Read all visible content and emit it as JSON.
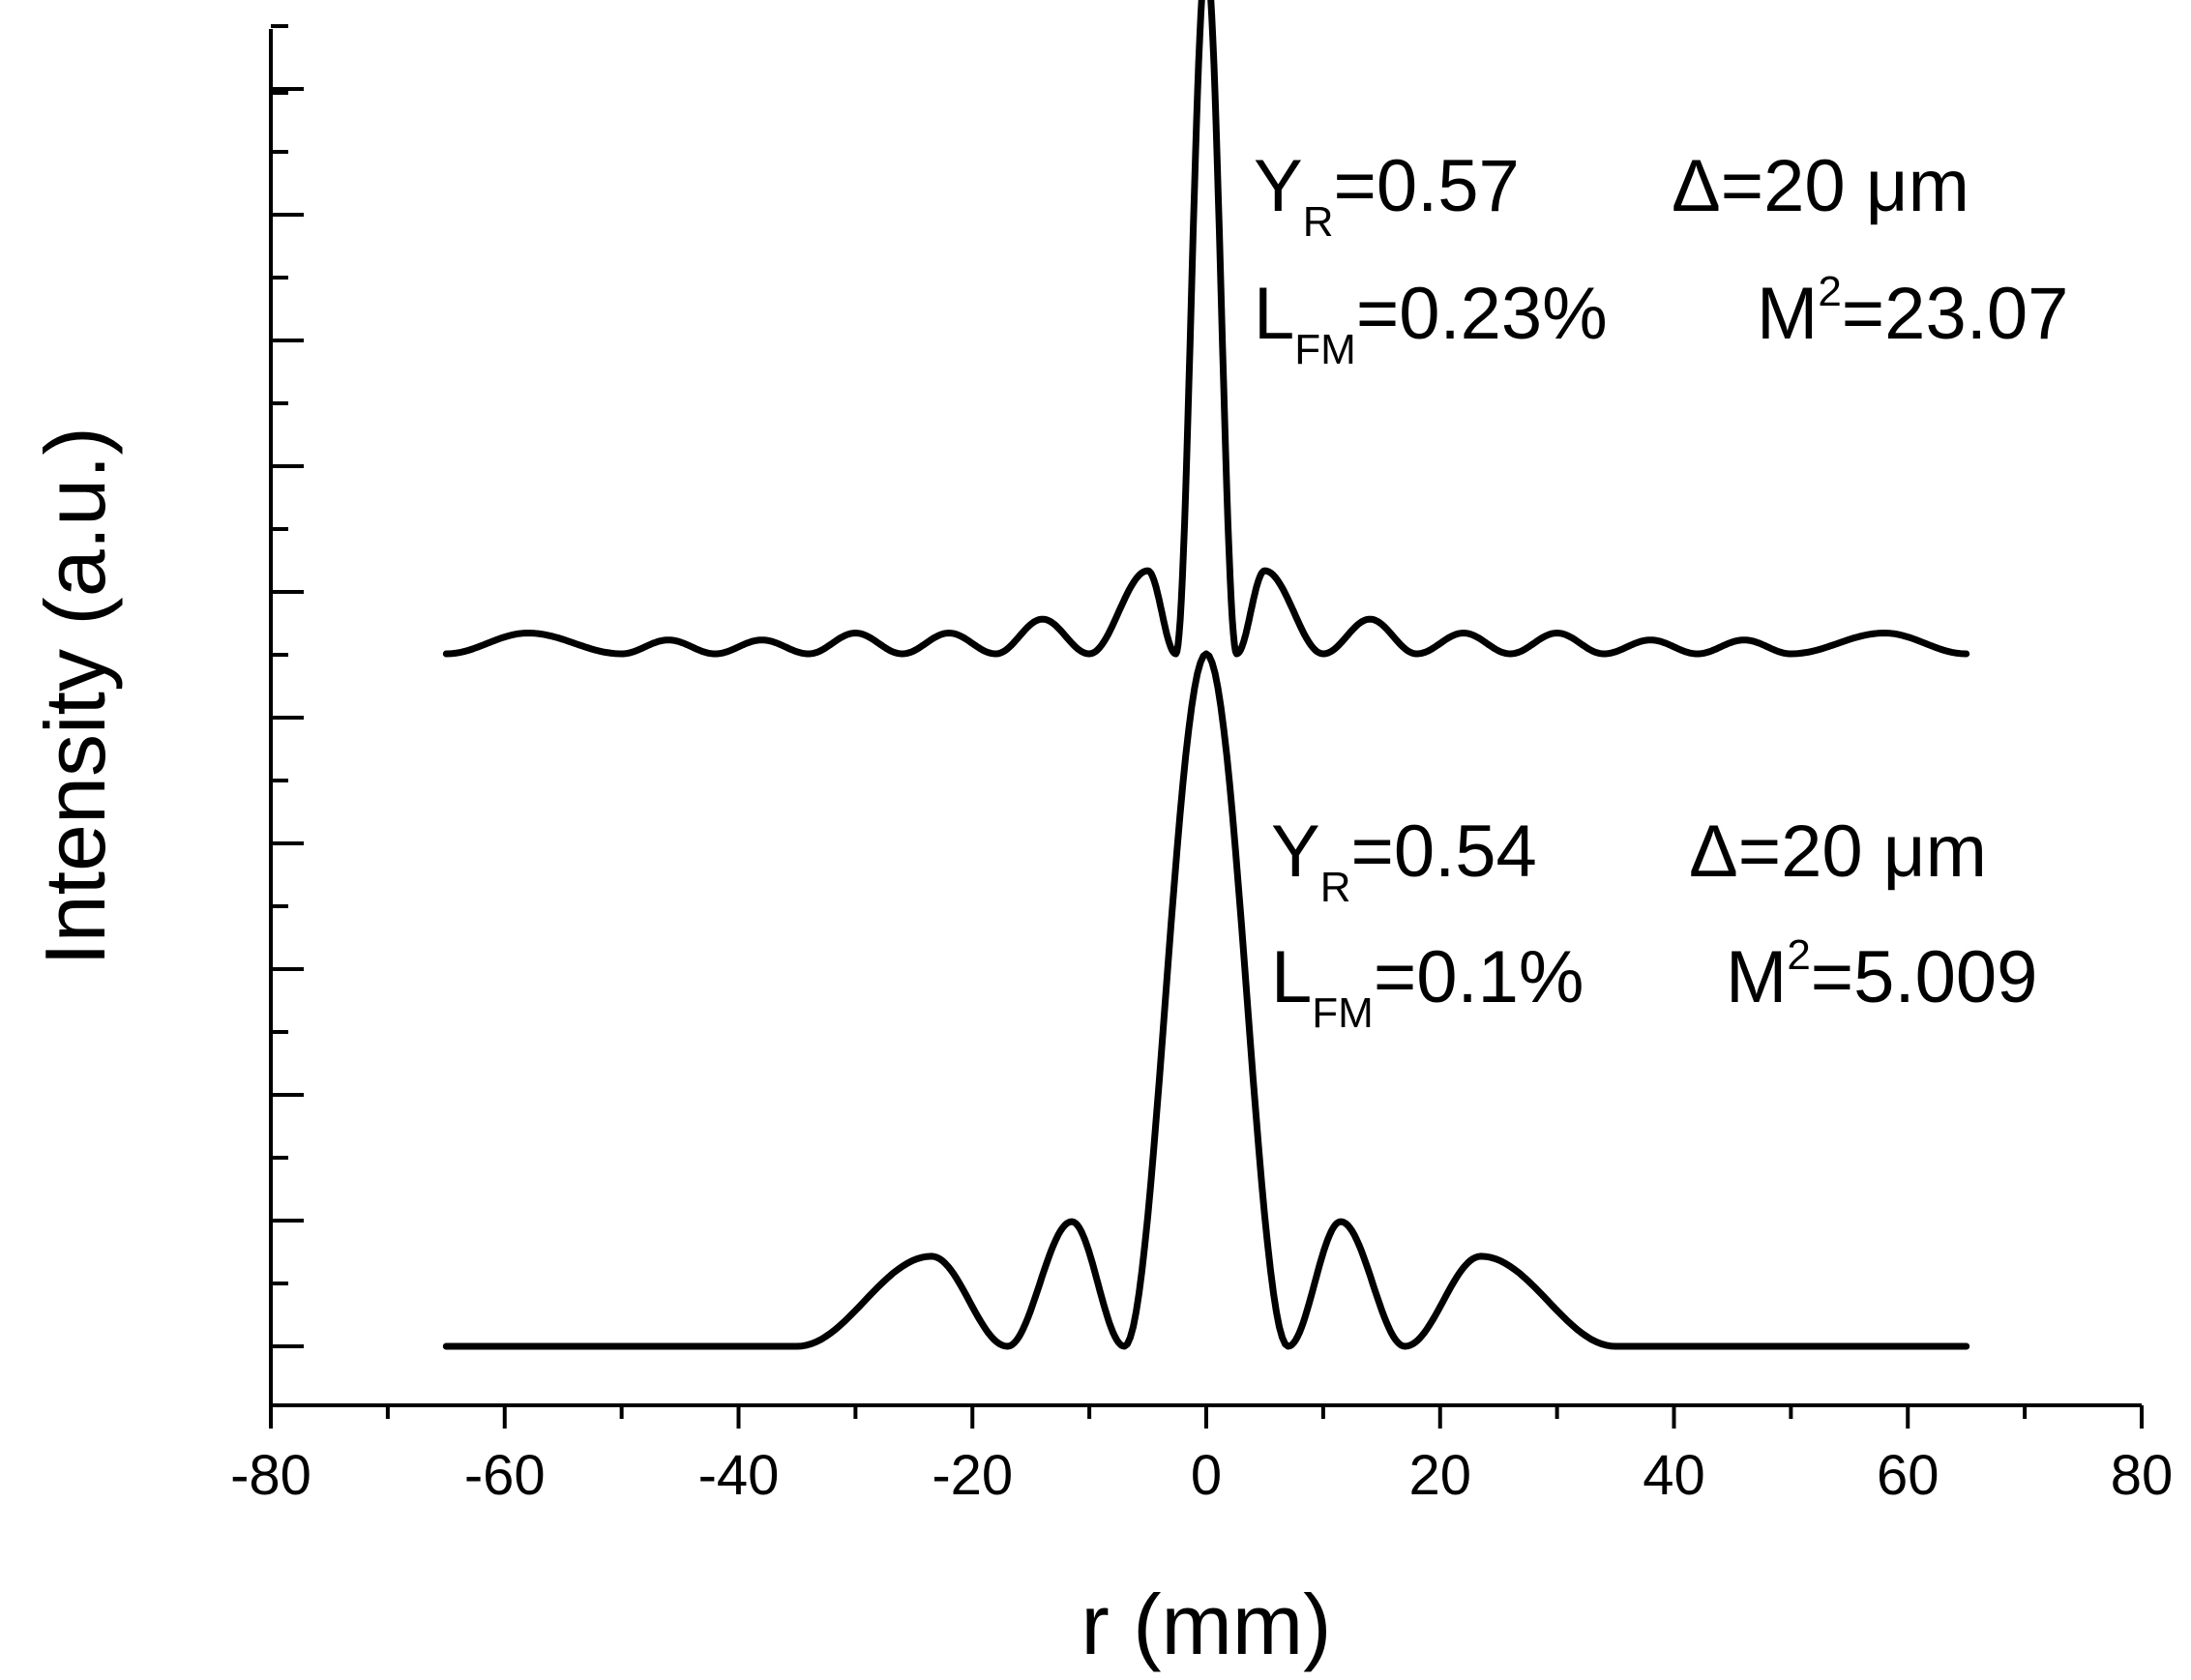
{
  "chart_data": {
    "type": "line",
    "xlabel": "r (mm)",
    "ylabel": "Intensity (a.u.)",
    "xlim": [
      -80,
      80
    ],
    "x_ticks": [
      -80,
      -60,
      -40,
      -20,
      0,
      20,
      40,
      60,
      80
    ],
    "x_tick_labels": [
      "-80",
      "-60",
      "-40",
      "-20",
      "0",
      "20",
      "40",
      "60",
      "80"
    ],
    "x_minor_step": 10,
    "ylim": [
      0,
      2.2
    ],
    "y_tick_labels_shown": false,
    "grid": false,
    "legend": "none",
    "series": [
      {
        "offset": 1.0,
        "x": [
          -65,
          -58,
          -50,
          -46,
          -42,
          -38,
          -34,
          -30,
          -26,
          -22,
          -18,
          -14,
          -10,
          -5,
          -2.6,
          0,
          2.6,
          5,
          10,
          14,
          18,
          22,
          26,
          30,
          34,
          38,
          42,
          46,
          50,
          58,
          65
        ],
        "y": [
          1.0,
          1.03,
          1.0,
          1.02,
          1.0,
          1.02,
          1.0,
          1.03,
          1.0,
          1.03,
          1.0,
          1.05,
          1.0,
          1.12,
          1.0,
          2.0,
          1.0,
          1.12,
          1.0,
          1.05,
          1.0,
          1.03,
          1.0,
          1.03,
          1.0,
          1.02,
          1.0,
          1.02,
          1.0,
          1.03,
          1.0
        ],
        "annotation": {
          "line1": {
            "y_base": "Y",
            "y_sub": "R",
            "y_val": "=0.57",
            "delta": "Δ=20 μm"
          },
          "line2": {
            "l_base": "L",
            "l_sub": "FM",
            "l_val": "=0.23%",
            "m_base": "M",
            "m_sup": "2",
            "m_val": "=23.07"
          }
        }
      },
      {
        "offset": 0.0,
        "x": [
          -65,
          -35,
          -23.5,
          -17,
          -11.5,
          -7,
          0,
          7,
          11.5,
          17,
          23.5,
          35,
          65
        ],
        "y": [
          0.0,
          0.0,
          0.13,
          0.0,
          0.18,
          0.0,
          1.0,
          0.0,
          0.18,
          0.0,
          0.13,
          0.0,
          0.0
        ],
        "annotation": {
          "line1": {
            "y_base": "Y",
            "y_sub": "R",
            "y_val": "=0.54",
            "delta": "Δ=20 μm"
          },
          "line2": {
            "l_base": "L",
            "l_sub": "FM",
            "l_val": "=0.1%",
            "m_base": "M",
            "m_sup": "2",
            "m_val": "=5.009"
          }
        }
      }
    ]
  }
}
